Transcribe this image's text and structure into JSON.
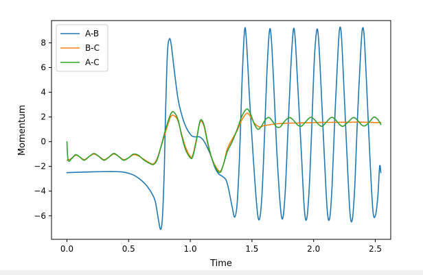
{
  "chart_data": {
    "type": "line",
    "title": "",
    "xlabel": "Time",
    "ylabel": "Momentum",
    "xlim": [
      -0.125,
      2.625
    ],
    "ylim": [
      -7.9,
      9.8
    ],
    "xticks": [
      0.0,
      0.5,
      1.0,
      1.5,
      2.0,
      2.5
    ],
    "xtick_labels": [
      "0.0",
      "0.5",
      "1.0",
      "1.5",
      "2.0",
      "2.5"
    ],
    "yticks": [
      -6,
      -4,
      -2,
      0,
      2,
      4,
      6,
      8
    ],
    "ytick_labels": [
      "−6",
      "−4",
      "−2",
      "0",
      "2",
      "4",
      "6",
      "8"
    ],
    "grid": false,
    "legend": {
      "placement": "top-left"
    },
    "series": [
      {
        "name": "A-B",
        "color": "#1f77b4",
        "points": [
          [
            0.0,
            -2.5
          ],
          [
            0.1,
            -2.47
          ],
          [
            0.2,
            -2.44
          ],
          [
            0.3,
            -2.42
          ],
          [
            0.4,
            -2.42
          ],
          [
            0.45,
            -2.45
          ],
          [
            0.5,
            -2.55
          ],
          [
            0.55,
            -2.75
          ],
          [
            0.6,
            -3.1
          ],
          [
            0.65,
            -3.6
          ],
          [
            0.7,
            -4.4
          ],
          [
            0.72,
            -5.0
          ],
          [
            0.74,
            -6.2
          ],
          [
            0.76,
            -7.1
          ],
          [
            0.775,
            -6.0
          ],
          [
            0.79,
            -2.0
          ],
          [
            0.8,
            2.5
          ],
          [
            0.815,
            7.2
          ],
          [
            0.83,
            8.3
          ],
          [
            0.845,
            7.9
          ],
          [
            0.87,
            5.8
          ],
          [
            0.9,
            3.5
          ],
          [
            0.93,
            2.2
          ],
          [
            0.96,
            1.3
          ],
          [
            1.0,
            0.6
          ],
          [
            1.03,
            0.4
          ],
          [
            1.07,
            0.4
          ],
          [
            1.1,
            0.2
          ],
          [
            1.13,
            -0.3
          ],
          [
            1.17,
            -1.2
          ],
          [
            1.2,
            -2.1
          ],
          [
            1.23,
            -2.6
          ],
          [
            1.26,
            -2.8
          ],
          [
            1.29,
            -3.1
          ],
          [
            1.31,
            -3.8
          ],
          [
            1.34,
            -5.3
          ],
          [
            1.36,
            -6.1
          ],
          [
            1.38,
            -5.0
          ],
          [
            1.4,
            -1.0
          ],
          [
            1.42,
            5.0
          ],
          [
            1.44,
            9.0
          ],
          [
            1.455,
            8.2
          ],
          [
            1.48,
            3.6
          ],
          [
            1.51,
            -1.2
          ],
          [
            1.54,
            -5.3
          ],
          [
            1.56,
            -6.3
          ],
          [
            1.58,
            -4.5
          ],
          [
            1.6,
            0.0
          ],
          [
            1.62,
            5.3
          ],
          [
            1.64,
            8.8
          ],
          [
            1.655,
            8.6
          ],
          [
            1.675,
            5.0
          ],
          [
            1.7,
            -0.5
          ],
          [
            1.73,
            -5.2
          ],
          [
            1.75,
            -6.2
          ],
          [
            1.77,
            -4.0
          ],
          [
            1.79,
            0.5
          ],
          [
            1.815,
            6.0
          ],
          [
            1.835,
            9.0
          ],
          [
            1.85,
            8.4
          ],
          [
            1.87,
            4.8
          ],
          [
            1.9,
            -0.8
          ],
          [
            1.925,
            -5.5
          ],
          [
            1.945,
            -6.2
          ],
          [
            1.965,
            -3.6
          ],
          [
            1.985,
            1.2
          ],
          [
            2.005,
            6.5
          ],
          [
            2.025,
            9.0
          ],
          [
            2.04,
            8.3
          ],
          [
            2.06,
            4.5
          ],
          [
            2.085,
            -0.8
          ],
          [
            2.11,
            -5.5
          ],
          [
            2.13,
            -6.2
          ],
          [
            2.15,
            -3.5
          ],
          [
            2.17,
            1.5
          ],
          [
            2.195,
            6.8
          ],
          [
            2.21,
            9.1
          ],
          [
            2.225,
            8.6
          ],
          [
            2.245,
            4.5
          ],
          [
            2.27,
            -1.0
          ],
          [
            2.295,
            -5.8
          ],
          [
            2.315,
            -6.2
          ],
          [
            2.335,
            -3.3
          ],
          [
            2.355,
            1.8
          ],
          [
            2.38,
            7.0
          ],
          [
            2.395,
            9.1
          ],
          [
            2.41,
            8.5
          ],
          [
            2.43,
            4.5
          ],
          [
            2.455,
            -1.0
          ],
          [
            2.48,
            -5.5
          ],
          [
            2.5,
            -6.0
          ],
          [
            2.52,
            -4.5
          ],
          [
            2.535,
            -2.0
          ],
          [
            2.545,
            -2.5
          ]
        ]
      },
      {
        "name": "B-C",
        "color": "#ff7f0e",
        "points": [
          [
            0.0,
            -1.5
          ],
          [
            0.03,
            -1.4
          ],
          [
            0.07,
            -1.1
          ],
          [
            0.1,
            -1.2
          ],
          [
            0.14,
            -1.45
          ],
          [
            0.18,
            -1.2
          ],
          [
            0.22,
            -1.0
          ],
          [
            0.26,
            -1.2
          ],
          [
            0.3,
            -1.45
          ],
          [
            0.34,
            -1.25
          ],
          [
            0.38,
            -1.0
          ],
          [
            0.42,
            -1.2
          ],
          [
            0.46,
            -1.45
          ],
          [
            0.5,
            -1.3
          ],
          [
            0.54,
            -1.05
          ],
          [
            0.58,
            -1.15
          ],
          [
            0.62,
            -1.4
          ],
          [
            0.66,
            -1.65
          ],
          [
            0.7,
            -1.8
          ],
          [
            0.73,
            -1.4
          ],
          [
            0.76,
            -0.5
          ],
          [
            0.8,
            0.8
          ],
          [
            0.84,
            2.0
          ],
          [
            0.87,
            2.1
          ],
          [
            0.9,
            1.7
          ],
          [
            0.93,
            0.6
          ],
          [
            0.96,
            -0.4
          ],
          [
            1.0,
            -1.2
          ],
          [
            1.02,
            -1.1
          ],
          [
            1.05,
            0.2
          ],
          [
            1.08,
            1.6
          ],
          [
            1.11,
            1.3
          ],
          [
            1.14,
            -0.1
          ],
          [
            1.17,
            -1.2
          ],
          [
            1.2,
            -1.9
          ],
          [
            1.24,
            -2.4
          ],
          [
            1.27,
            -1.8
          ],
          [
            1.3,
            -0.6
          ],
          [
            1.34,
            0.2
          ],
          [
            1.38,
            0.9
          ],
          [
            1.42,
            1.8
          ],
          [
            1.46,
            2.3
          ],
          [
            1.49,
            2.0
          ],
          [
            1.52,
            1.5
          ],
          [
            1.56,
            1.2
          ],
          [
            1.6,
            1.3
          ],
          [
            1.7,
            1.45
          ],
          [
            1.8,
            1.5
          ],
          [
            1.9,
            1.52
          ],
          [
            2.0,
            1.55
          ],
          [
            2.1,
            1.56
          ],
          [
            2.2,
            1.57
          ],
          [
            2.3,
            1.58
          ],
          [
            2.4,
            1.58
          ],
          [
            2.5,
            1.55
          ],
          [
            2.545,
            1.55
          ]
        ]
      },
      {
        "name": "A-C",
        "color": "#2ca02c",
        "points": [
          [
            0.0,
            0.0
          ],
          [
            0.01,
            -1.5
          ],
          [
            0.04,
            -1.35
          ],
          [
            0.07,
            -1.05
          ],
          [
            0.1,
            -1.2
          ],
          [
            0.14,
            -1.5
          ],
          [
            0.18,
            -1.2
          ],
          [
            0.22,
            -0.95
          ],
          [
            0.26,
            -1.2
          ],
          [
            0.3,
            -1.5
          ],
          [
            0.34,
            -1.25
          ],
          [
            0.38,
            -0.95
          ],
          [
            0.42,
            -1.2
          ],
          [
            0.46,
            -1.5
          ],
          [
            0.5,
            -1.3
          ],
          [
            0.54,
            -1.0
          ],
          [
            0.58,
            -1.1
          ],
          [
            0.62,
            -1.45
          ],
          [
            0.66,
            -1.7
          ],
          [
            0.7,
            -1.85
          ],
          [
            0.73,
            -1.5
          ],
          [
            0.76,
            -0.5
          ],
          [
            0.8,
            1.0
          ],
          [
            0.84,
            2.2
          ],
          [
            0.865,
            2.4
          ],
          [
            0.9,
            1.8
          ],
          [
            0.93,
            0.5
          ],
          [
            0.96,
            -0.6
          ],
          [
            1.0,
            -1.3
          ],
          [
            1.02,
            -1.2
          ],
          [
            1.05,
            0.1
          ],
          [
            1.08,
            1.7
          ],
          [
            1.11,
            1.4
          ],
          [
            1.14,
            0.0
          ],
          [
            1.17,
            -1.2
          ],
          [
            1.2,
            -2.0
          ],
          [
            1.24,
            -2.5
          ],
          [
            1.27,
            -1.8
          ],
          [
            1.3,
            -0.8
          ],
          [
            1.34,
            0.0
          ],
          [
            1.38,
            1.0
          ],
          [
            1.42,
            2.1
          ],
          [
            1.46,
            2.65
          ],
          [
            1.49,
            2.2
          ],
          [
            1.52,
            1.4
          ],
          [
            1.55,
            1.0
          ],
          [
            1.58,
            1.3
          ],
          [
            1.61,
            1.8
          ],
          [
            1.64,
            1.95
          ],
          [
            1.67,
            1.6
          ],
          [
            1.7,
            1.2
          ],
          [
            1.73,
            1.2
          ],
          [
            1.76,
            1.6
          ],
          [
            1.8,
            1.95
          ],
          [
            1.83,
            1.8
          ],
          [
            1.87,
            1.35
          ],
          [
            1.9,
            1.25
          ],
          [
            1.93,
            1.55
          ],
          [
            1.97,
            1.95
          ],
          [
            2.0,
            1.85
          ],
          [
            2.04,
            1.4
          ],
          [
            2.07,
            1.25
          ],
          [
            2.1,
            1.55
          ],
          [
            2.14,
            1.95
          ],
          [
            2.17,
            1.85
          ],
          [
            2.21,
            1.4
          ],
          [
            2.24,
            1.25
          ],
          [
            2.28,
            1.6
          ],
          [
            2.32,
            1.95
          ],
          [
            2.35,
            1.8
          ],
          [
            2.39,
            1.35
          ],
          [
            2.42,
            1.3
          ],
          [
            2.46,
            1.7
          ],
          [
            2.49,
            2.0
          ],
          [
            2.52,
            1.8
          ],
          [
            2.545,
            1.4
          ]
        ]
      }
    ]
  }
}
